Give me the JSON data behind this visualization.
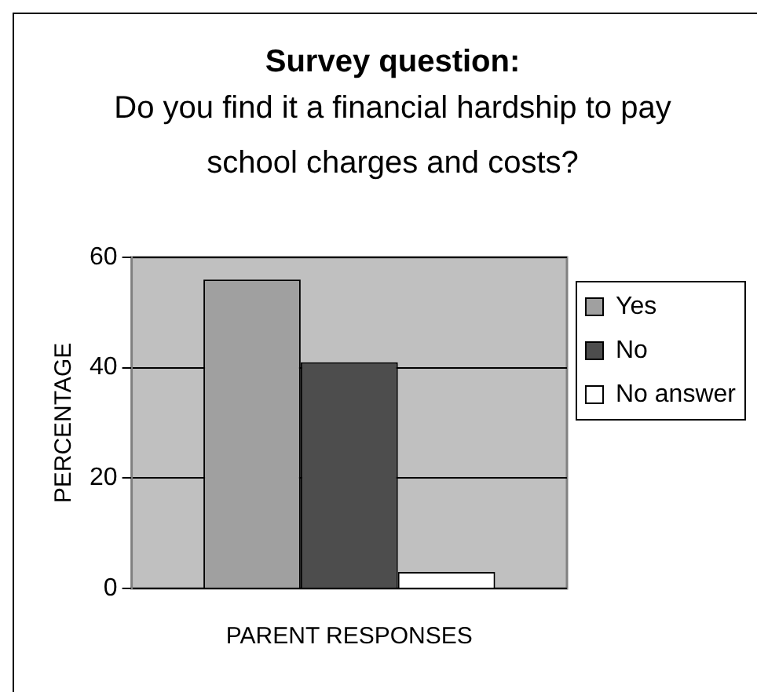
{
  "chart_data": {
    "type": "bar",
    "title": "Survey question:",
    "subtitle": "Do you find it a financial hardship to pay school charges and costs?",
    "xlabel": "PARENT RESPONSES",
    "ylabel": "PERCENTAGE",
    "categories": [
      null
    ],
    "series": [
      {
        "name": "Yes",
        "color": "#a0a0a0",
        "values": [
          56
        ]
      },
      {
        "name": "No",
        "color": "#4d4d4d",
        "values": [
          41
        ]
      },
      {
        "name": "No answer",
        "color": "#ffffff",
        "values": [
          3
        ]
      }
    ],
    "ylim": [
      0,
      60
    ],
    "yticks": [
      0,
      20,
      40,
      60
    ],
    "grid": "y",
    "legend": "right"
  }
}
